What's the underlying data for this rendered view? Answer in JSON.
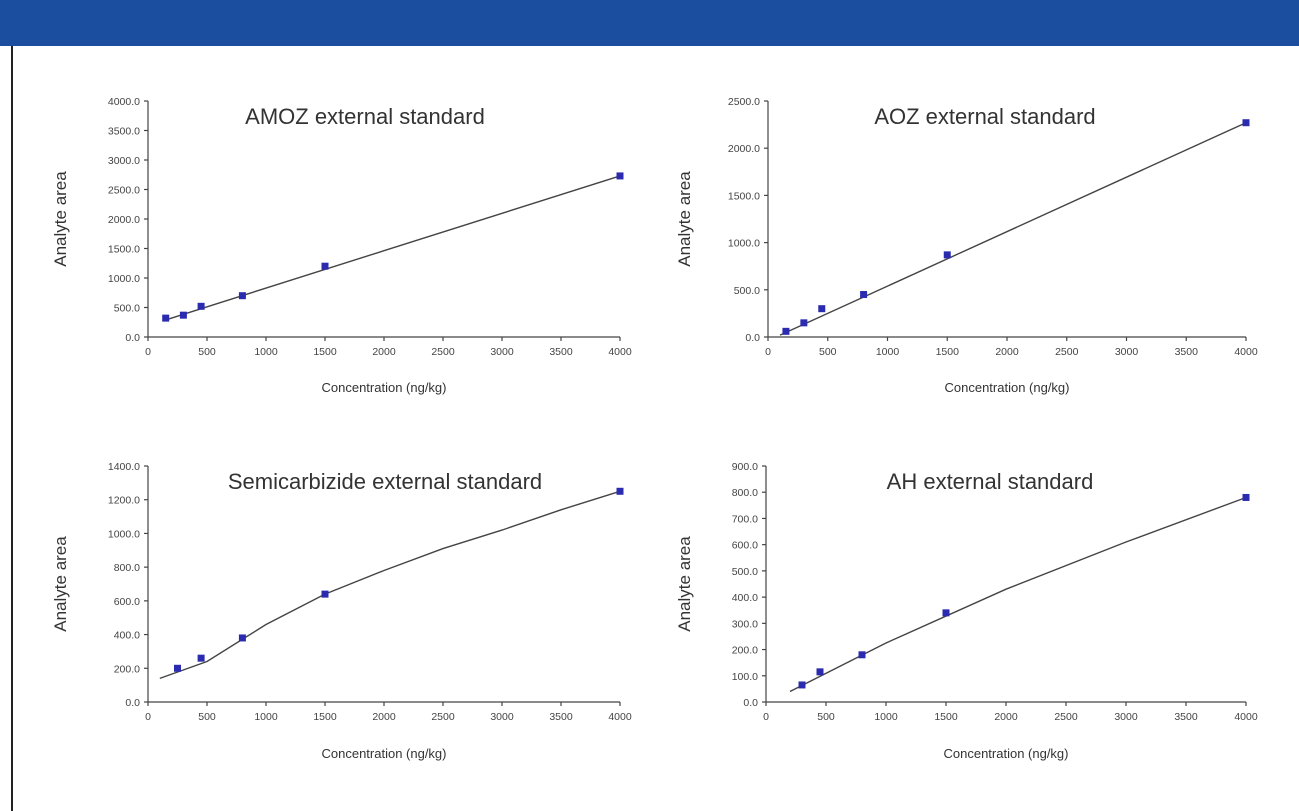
{
  "colors": {
    "header_bar": "#1c4ea0",
    "marker": "#2b2bb0",
    "line": "#444444"
  },
  "chart_data": [
    {
      "type": "scatter",
      "title": "AMOZ external standard",
      "xlabel": "Concentration (ng/kg)",
      "ylabel": "Analyte area",
      "xlim": [
        0,
        4000
      ],
      "ylim": [
        0,
        4000
      ],
      "xticks": [
        0,
        500,
        1000,
        1500,
        2000,
        2500,
        3000,
        3500,
        4000
      ],
      "xtick_labels": [
        "0",
        "500",
        "1000",
        "1500",
        "2000",
        "2500",
        "3000",
        "3500",
        "4000"
      ],
      "yticks": [
        0,
        500,
        1000,
        1500,
        2000,
        2500,
        3000,
        3500,
        4000
      ],
      "ytick_labels": [
        "0.0",
        "500.0",
        "1000.0",
        "1500.0",
        "2000.0",
        "2500.0",
        "3000.0",
        "3500.0",
        "4000.0"
      ],
      "points": {
        "x": [
          150,
          300,
          450,
          800,
          1500,
          4000
        ],
        "y": [
          320,
          370,
          520,
          700,
          1200,
          2730
        ]
      },
      "trendline": {
        "x": [
          150,
          4000
        ],
        "y": [
          290,
          2730
        ]
      }
    },
    {
      "type": "scatter",
      "title": "AOZ external standard",
      "xlabel": "Concentration (ng/kg)",
      "ylabel": "Analyte area",
      "xlim": [
        0,
        4000
      ],
      "ylim": [
        0,
        2500
      ],
      "xticks": [
        0,
        500,
        1000,
        1500,
        2000,
        2500,
        3000,
        3500,
        4000
      ],
      "xtick_labels": [
        "0",
        "500",
        "1000",
        "1500",
        "2000",
        "2500",
        "3000",
        "3500",
        "4000"
      ],
      "yticks": [
        0,
        500,
        1000,
        1500,
        2000,
        2500
      ],
      "ytick_labels": [
        "0.0",
        "500.0",
        "1000.0",
        "1500.0",
        "2000.0",
        "2500.0"
      ],
      "points": {
        "x": [
          150,
          300,
          450,
          800,
          1500,
          4000
        ],
        "y": [
          60,
          150,
          300,
          450,
          870,
          2270
        ]
      },
      "trendline": {
        "x": [
          100,
          4000
        ],
        "y": [
          20,
          2270
        ]
      }
    },
    {
      "type": "scatter",
      "title": "Semicarbizide external standard",
      "xlabel": "Concentration (ng/kg)",
      "ylabel": "Analyte area",
      "xlim": [
        0,
        4000
      ],
      "ylim": [
        0,
        1400
      ],
      "xticks": [
        0,
        500,
        1000,
        1500,
        2000,
        2500,
        3000,
        3500,
        4000
      ],
      "xtick_labels": [
        "0",
        "500",
        "1000",
        "1500",
        "2000",
        "2500",
        "3000",
        "3500",
        "4000"
      ],
      "yticks": [
        0,
        200,
        400,
        600,
        800,
        1000,
        1200,
        1400
      ],
      "ytick_labels": [
        "0.0",
        "200.0",
        "400.0",
        "600.0",
        "800.0",
        "1000.0",
        "1200.0",
        "1400.0"
      ],
      "points": {
        "x": [
          250,
          450,
          800,
          1500,
          4000
        ],
        "y": [
          200,
          260,
          380,
          640,
          1250
        ]
      },
      "trendline": {
        "x": [
          100,
          500,
          1000,
          1500,
          2000,
          2500,
          3000,
          3500,
          4000
        ],
        "y": [
          140,
          240,
          460,
          640,
          780,
          910,
          1020,
          1140,
          1250
        ]
      }
    },
    {
      "type": "scatter",
      "title": "AH external standard",
      "xlabel": "Concentration (ng/kg)",
      "ylabel": "Analyte area",
      "xlim": [
        0,
        4000
      ],
      "ylim": [
        0,
        900
      ],
      "xticks": [
        0,
        500,
        1000,
        1500,
        2000,
        2500,
        3000,
        3500,
        4000
      ],
      "xtick_labels": [
        "0",
        "500",
        "1000",
        "1500",
        "2000",
        "2500",
        "3000",
        "3500",
        "4000"
      ],
      "yticks": [
        0,
        100,
        200,
        300,
        400,
        500,
        600,
        700,
        800,
        900
      ],
      "ytick_labels": [
        "0.0",
        "100.0",
        "200.0",
        "300.0",
        "400.0",
        "500.0",
        "600.0",
        "700.0",
        "800.0",
        "900.0"
      ],
      "points": {
        "x": [
          300,
          450,
          800,
          1500,
          4000
        ],
        "y": [
          65,
          115,
          180,
          340,
          780
        ]
      },
      "trendline": {
        "x": [
          200,
          1000,
          2000,
          3000,
          4000
        ],
        "y": [
          40,
          225,
          430,
          610,
          780
        ]
      }
    }
  ]
}
